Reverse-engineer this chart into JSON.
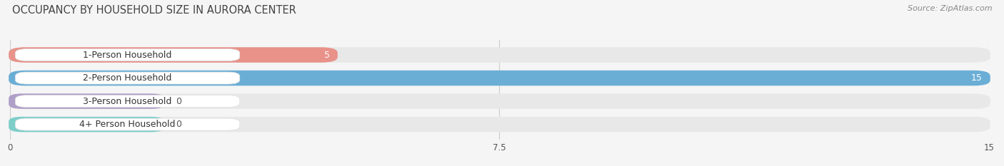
{
  "title": "OCCUPANCY BY HOUSEHOLD SIZE IN AURORA CENTER",
  "source": "Source: ZipAtlas.com",
  "categories": [
    "1-Person Household",
    "2-Person Household",
    "3-Person Household",
    "4+ Person Household"
  ],
  "values": [
    5,
    15,
    0,
    0
  ],
  "bar_colors": [
    "#E8928A",
    "#6AAED6",
    "#B0A0C8",
    "#7ECECA"
  ],
  "background_color": "#F5F5F5",
  "bar_bg_color": "#E8E8E8",
  "xlim": [
    0,
    15
  ],
  "xticks": [
    0,
    7.5,
    15
  ],
  "title_fontsize": 10.5,
  "source_fontsize": 8,
  "bar_height": 0.62,
  "cat_label_fontsize": 9,
  "val_label_fontsize": 9
}
